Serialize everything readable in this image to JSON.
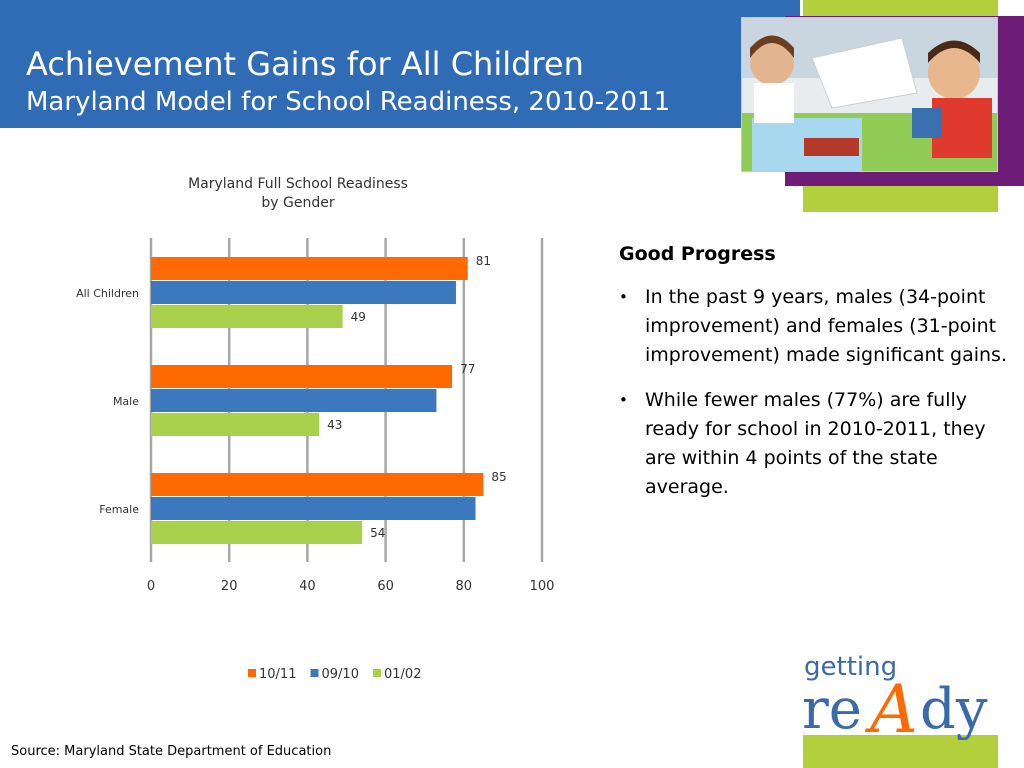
{
  "header": {
    "title": "Achievement Gains for All Children",
    "subtitle": "Maryland Model for School Readiness, 2010-2011"
  },
  "colors": {
    "header_blue": "#2f6cb5",
    "accent_green": "#b3cf3b",
    "accent_purple": "#6d1d78",
    "series_10_11": "#ff6a00",
    "series_09_10": "#3b78bd",
    "series_01_02": "#a8d04a"
  },
  "chart_data": {
    "type": "bar",
    "orientation": "horizontal",
    "title": "Maryland Full School Readiness\nby Gender",
    "categories": [
      "All Children",
      "Male",
      "Female"
    ],
    "series": [
      {
        "name": "10/11",
        "values": [
          81,
          77,
          85
        ],
        "color": "#ff6a00",
        "labels_shown": true
      },
      {
        "name": "09/10",
        "values": [
          78,
          73,
          83
        ],
        "color": "#3b78bd",
        "labels_shown": false
      },
      {
        "name": "01/02",
        "values": [
          49,
          43,
          54
        ],
        "color": "#a8d04a",
        "labels_shown": true
      }
    ],
    "xlim": [
      0,
      100
    ],
    "xticks": [
      0,
      20,
      40,
      60,
      80,
      100
    ],
    "grid": true,
    "legend_position": "bottom"
  },
  "side_panel": {
    "heading": "Good Progress",
    "bullets": [
      "In the past 9 years, males (34-point improvement) and females (31-point improvement) made significant gains.",
      "While fewer males (77%) are fully ready for school in 2010-2011, they are within 4 points of the state average."
    ]
  },
  "source": "Source: Maryland State Department of Education",
  "photo": {
    "icon": "children-classroom-photo"
  },
  "logo": {
    "top": "getting",
    "bottom_left": "re",
    "bottom_mid": "A",
    "bottom_right": "dy"
  }
}
